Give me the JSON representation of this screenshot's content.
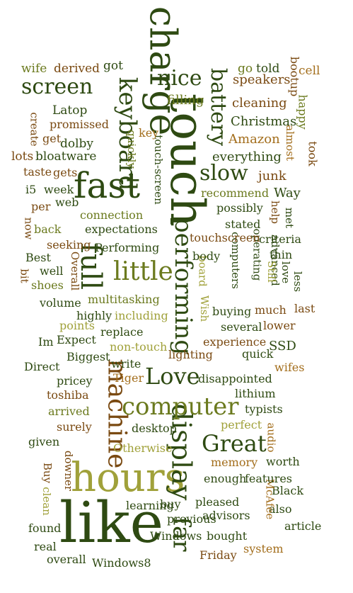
{
  "palette": {
    "dark_green": "#2e4a12",
    "olive": "#6b7a1e",
    "light_olive": "#a0a13a",
    "brown": "#7a4a12",
    "tan": "#a36e1c"
  },
  "words": [
    {
      "text": "touch",
      "color": "dark_green"
    },
    {
      "text": "like",
      "color": "dark_green"
    },
    {
      "text": "charge",
      "color": "dark_green"
    },
    {
      "text": "hours",
      "color": "light_olive"
    },
    {
      "text": "fast",
      "color": "dark_green"
    },
    {
      "text": "performing",
      "color": "dark_green"
    },
    {
      "text": "full",
      "color": "dark_green"
    },
    {
      "text": "display",
      "color": "dark_green"
    },
    {
      "text": "machine",
      "color": "brown"
    },
    {
      "text": "keyboard",
      "color": "dark_green"
    },
    {
      "text": "computer",
      "color": "olive"
    },
    {
      "text": "battery",
      "color": "dark_green"
    },
    {
      "text": "little",
      "color": "olive"
    },
    {
      "text": "Love",
      "color": "dark_green"
    },
    {
      "text": "Great",
      "color": "dark_green"
    },
    {
      "text": "screen",
      "color": "dark_green"
    },
    {
      "text": "slow",
      "color": "dark_green"
    },
    {
      "text": "nice",
      "color": "dark_green"
    },
    {
      "text": "far",
      "color": "dark_green"
    },
    {
      "text": "filling",
      "color": "olive"
    },
    {
      "text": "speakers",
      "color": "brown"
    },
    {
      "text": "cleaning",
      "color": "brown"
    },
    {
      "text": "Christmas",
      "color": "dark_green"
    },
    {
      "text": "Amazon",
      "color": "tan"
    },
    {
      "text": "everything",
      "color": "dark_green"
    },
    {
      "text": "junk",
      "color": "brown"
    },
    {
      "text": "Way",
      "color": "dark_green"
    },
    {
      "text": "wife",
      "color": "olive"
    },
    {
      "text": "derived",
      "color": "brown"
    },
    {
      "text": "got",
      "color": "dark_green"
    },
    {
      "text": "go",
      "color": "olive"
    },
    {
      "text": "told",
      "color": "dark_green"
    },
    {
      "text": "bootup",
      "color": "brown"
    },
    {
      "text": "cell",
      "color": "tan"
    },
    {
      "text": "happy",
      "color": "olive"
    },
    {
      "text": "took",
      "color": "brown"
    },
    {
      "text": "Latop",
      "color": "dark_green"
    },
    {
      "text": "create",
      "color": "brown"
    },
    {
      "text": "get",
      "color": "brown"
    },
    {
      "text": "promissed",
      "color": "brown"
    },
    {
      "text": "dolby",
      "color": "dark_green"
    },
    {
      "text": "lots",
      "color": "brown"
    },
    {
      "text": "bloatware",
      "color": "dark_green"
    },
    {
      "text": "taste",
      "color": "brown"
    },
    {
      "text": "gets",
      "color": "brown"
    },
    {
      "text": "i5",
      "color": "dark_green"
    },
    {
      "text": "week",
      "color": "dark_green"
    },
    {
      "text": "per",
      "color": "brown"
    },
    {
      "text": "web",
      "color": "dark_green"
    },
    {
      "text": "connection",
      "color": "olive"
    },
    {
      "text": "now",
      "color": "brown"
    },
    {
      "text": "back",
      "color": "olive"
    },
    {
      "text": "expectations",
      "color": "dark_green"
    },
    {
      "text": "seeking",
      "color": "brown"
    },
    {
      "text": "Performing",
      "color": "dark_green"
    },
    {
      "text": "Best",
      "color": "dark_green"
    },
    {
      "text": "Overall",
      "color": "brown"
    },
    {
      "text": "well",
      "color": "dark_green"
    },
    {
      "text": "bit",
      "color": "brown"
    },
    {
      "text": "shoes",
      "color": "olive"
    },
    {
      "text": "volume",
      "color": "dark_green"
    },
    {
      "text": "multitasking",
      "color": "olive"
    },
    {
      "text": "highly",
      "color": "dark_green"
    },
    {
      "text": "including",
      "color": "light_olive"
    },
    {
      "text": "points",
      "color": "light_olive"
    },
    {
      "text": "replace",
      "color": "dark_green"
    },
    {
      "text": "Im",
      "color": "dark_green"
    },
    {
      "text": "Expect",
      "color": "dark_green"
    },
    {
      "text": "non-touch",
      "color": "light_olive"
    },
    {
      "text": "Biggest",
      "color": "dark_green"
    },
    {
      "text": "Direct",
      "color": "dark_green"
    },
    {
      "text": "write",
      "color": "dark_green"
    },
    {
      "text": "pricey",
      "color": "dark_green"
    },
    {
      "text": "Tiger",
      "color": "tan"
    },
    {
      "text": "toshiba",
      "color": "brown"
    },
    {
      "text": "arrived",
      "color": "olive"
    },
    {
      "text": "surely",
      "color": "brown"
    },
    {
      "text": "given",
      "color": "dark_green"
    },
    {
      "text": "desktop",
      "color": "dark_green"
    },
    {
      "text": "Otherwise",
      "color": "light_olive"
    },
    {
      "text": "downer",
      "color": "brown"
    },
    {
      "text": "Buy",
      "color": "brown"
    },
    {
      "text": "clean",
      "color": "light_olive"
    },
    {
      "text": "found",
      "color": "dark_green"
    },
    {
      "text": "real",
      "color": "dark_green"
    },
    {
      "text": "overall",
      "color": "dark_green"
    },
    {
      "text": "Windows8",
      "color": "dark_green"
    },
    {
      "text": "learning",
      "color": "dark_green"
    },
    {
      "text": "buy",
      "color": "dark_green"
    },
    {
      "text": "previous",
      "color": "dark_green"
    },
    {
      "text": "Windows",
      "color": "dark_green"
    },
    {
      "text": "bought",
      "color": "dark_green"
    },
    {
      "text": "Friday",
      "color": "brown"
    },
    {
      "text": "system",
      "color": "tan"
    },
    {
      "text": "article",
      "color": "dark_green"
    },
    {
      "text": "also",
      "color": "dark_green"
    },
    {
      "text": "Black",
      "color": "dark_green"
    },
    {
      "text": "McAfee",
      "color": "tan"
    },
    {
      "text": "advisors",
      "color": "dark_green"
    },
    {
      "text": "pleased",
      "color": "dark_green"
    },
    {
      "text": "features",
      "color": "dark_green"
    },
    {
      "text": "worth",
      "color": "dark_green"
    },
    {
      "text": "enough",
      "color": "dark_green"
    },
    {
      "text": "memory",
      "color": "tan"
    },
    {
      "text": "audio",
      "color": "tan"
    },
    {
      "text": "perfect",
      "color": "light_olive"
    },
    {
      "text": "typists",
      "color": "dark_green"
    },
    {
      "text": "lithium",
      "color": "dark_green"
    },
    {
      "text": "disappointed",
      "color": "dark_green"
    },
    {
      "text": "wifes",
      "color": "tan"
    },
    {
      "text": "SSD",
      "color": "dark_green"
    },
    {
      "text": "quick",
      "color": "dark_green"
    },
    {
      "text": "experience",
      "color": "brown"
    },
    {
      "text": "lighting",
      "color": "brown"
    },
    {
      "text": "lower",
      "color": "brown"
    },
    {
      "text": "several",
      "color": "dark_green"
    },
    {
      "text": "buying",
      "color": "dark_green"
    },
    {
      "text": "much",
      "color": "brown"
    },
    {
      "text": "last",
      "color": "brown"
    },
    {
      "text": "board",
      "color": "light_olive"
    },
    {
      "text": "Wish",
      "color": "light_olive"
    },
    {
      "text": "computers",
      "color": "dark_green"
    },
    {
      "text": "body",
      "color": "dark_green"
    },
    {
      "text": "operating",
      "color": "dark_green"
    },
    {
      "text": "advanced",
      "color": "dark_green"
    },
    {
      "text": "Still",
      "color": "light_olive"
    },
    {
      "text": "love",
      "color": "dark_green"
    },
    {
      "text": "thin",
      "color": "dark_green"
    },
    {
      "text": "less",
      "color": "dark_green"
    },
    {
      "text": "criteria",
      "color": "dark_green"
    },
    {
      "text": "touchscreen",
      "color": "brown"
    },
    {
      "text": "stated",
      "color": "dark_green"
    },
    {
      "text": "possibly",
      "color": "dark_green"
    },
    {
      "text": "met",
      "color": "dark_green"
    },
    {
      "text": "help",
      "color": "brown"
    },
    {
      "text": "almost",
      "color": "tan"
    },
    {
      "text": "recommend",
      "color": "olive"
    },
    {
      "text": "touch-screen",
      "color": "dark_green"
    },
    {
      "text": "quickly",
      "color": "olive"
    },
    {
      "text": "key",
      "color": "tan"
    }
  ]
}
